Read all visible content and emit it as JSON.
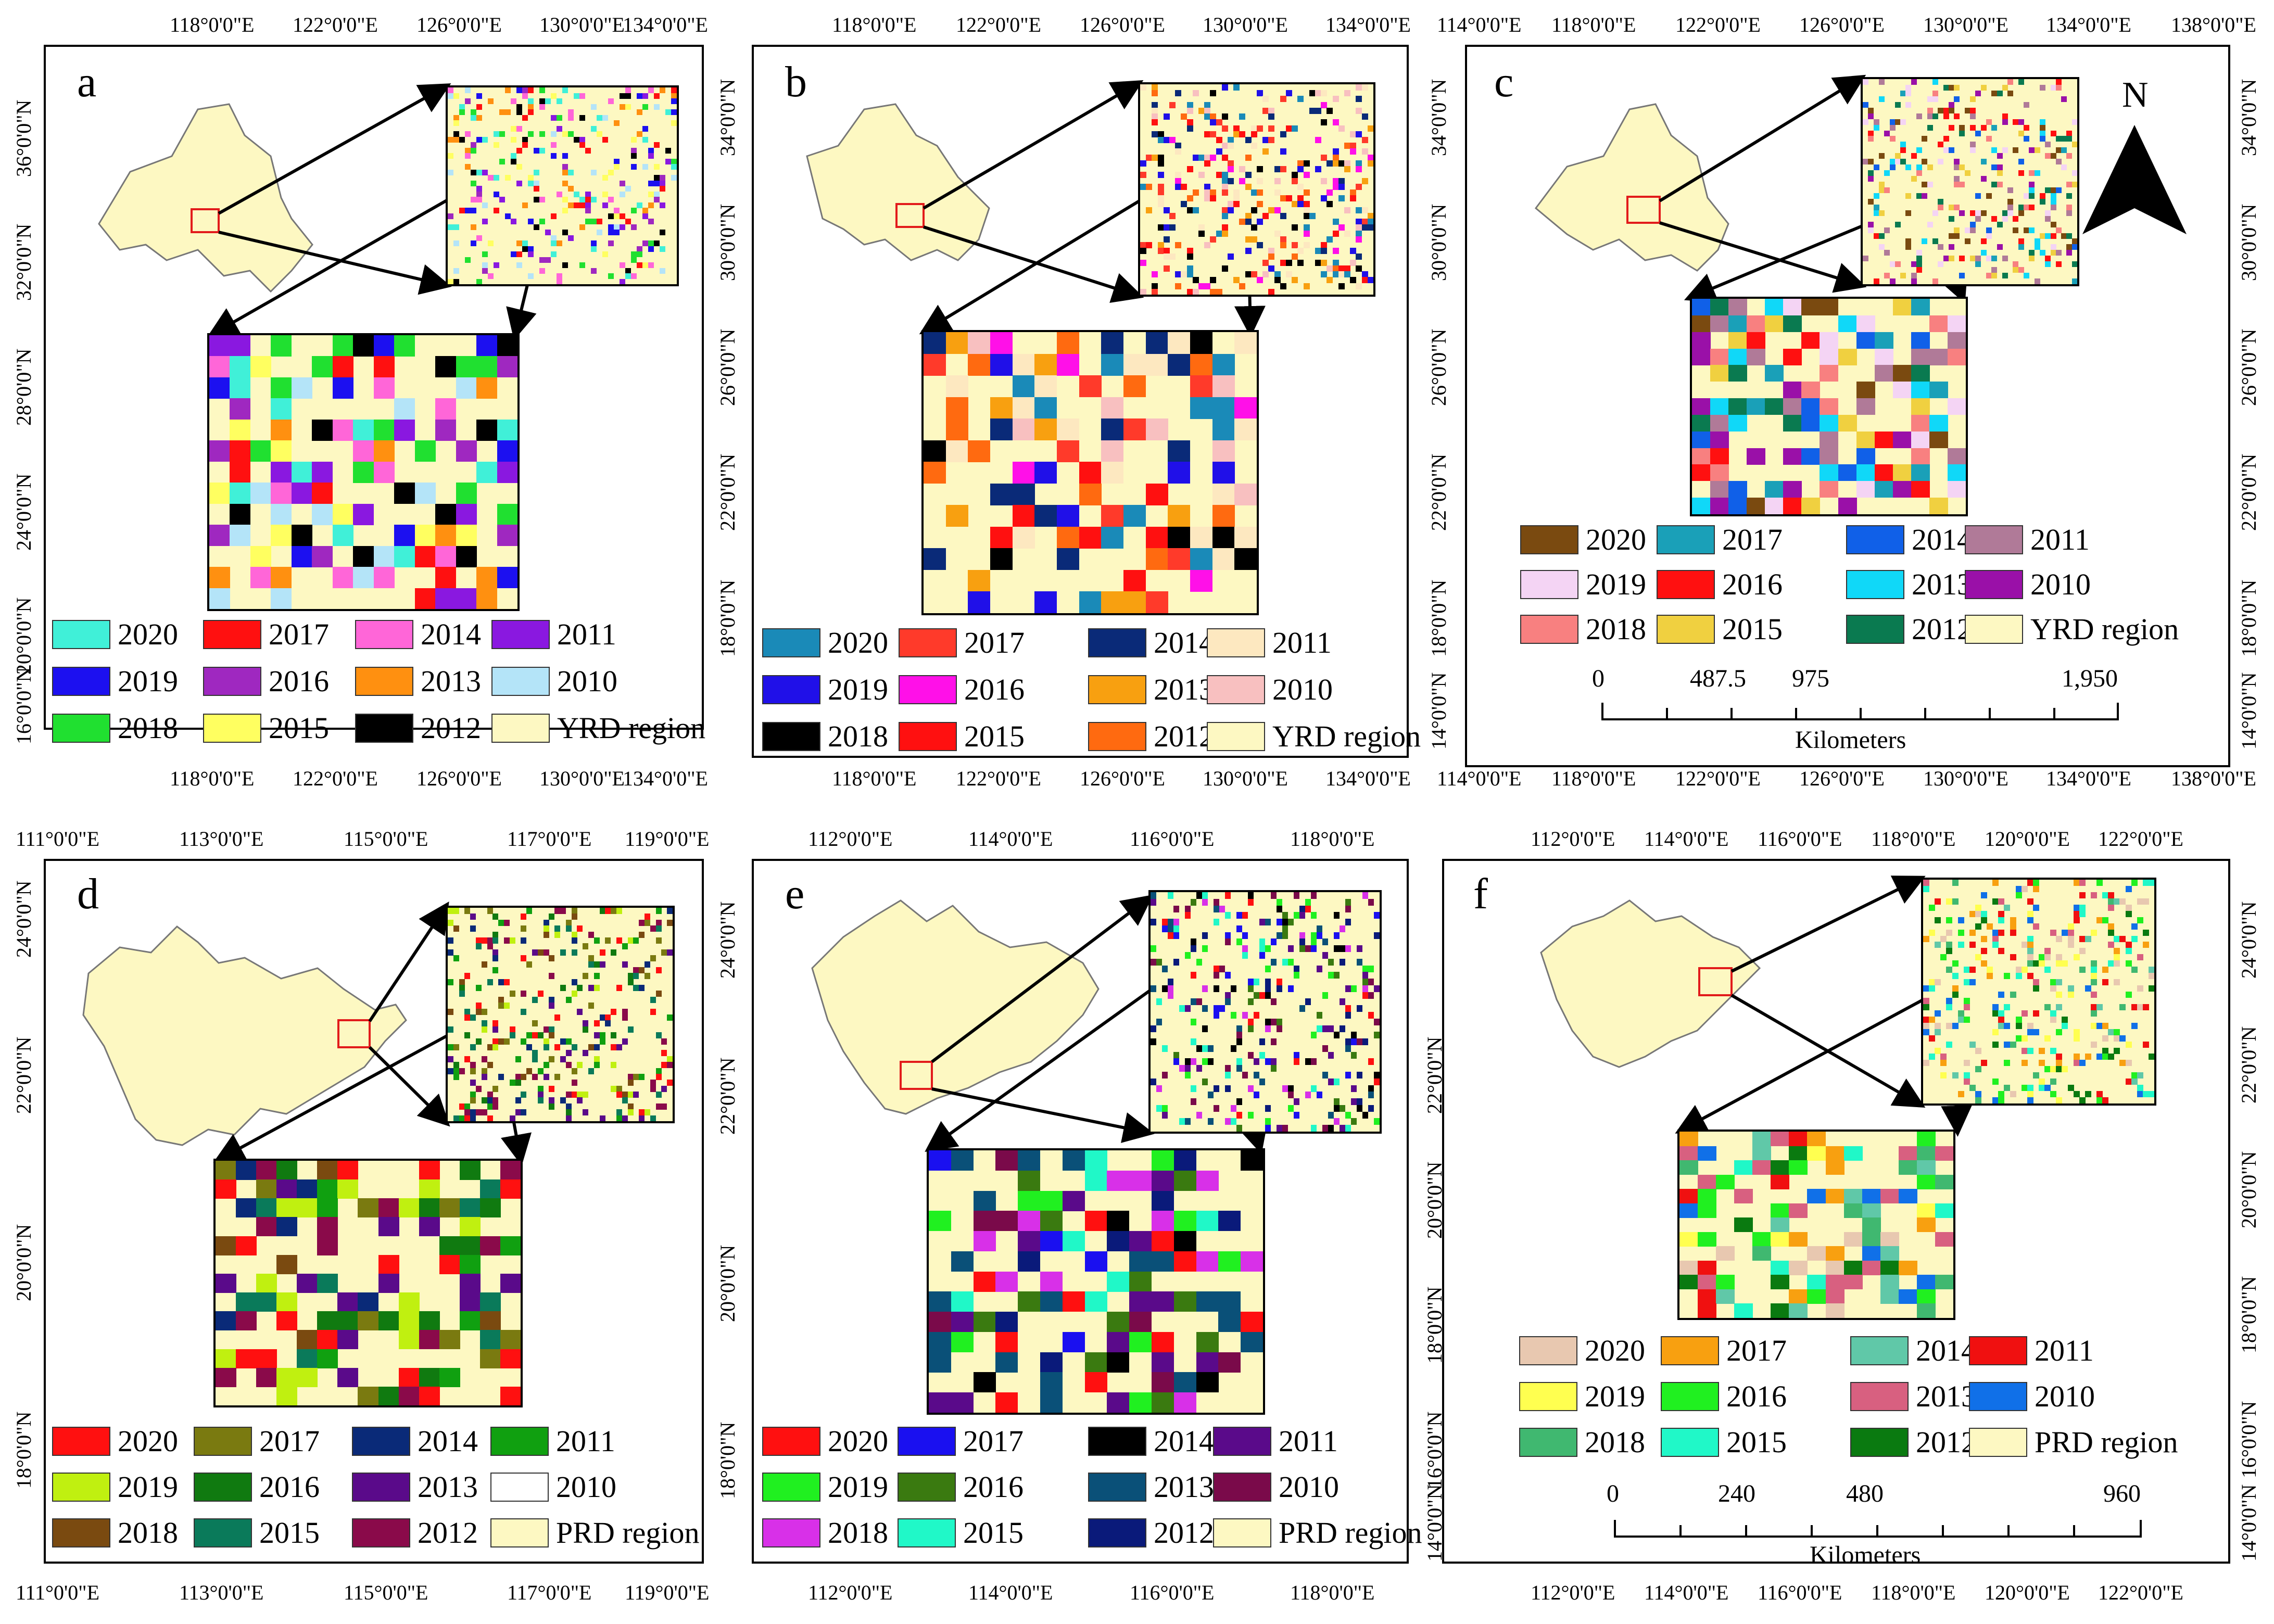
{
  "figure": "Six-panel land change maps of YRD and PRD regions",
  "colors": {
    "region": "#fdf8c2",
    "redbox": "#e21b1b"
  },
  "panels": [
    {
      "id": "a",
      "label": "a",
      "xticks": [
        "118°0'0\"E",
        "122°0'0\"E",
        "126°0'0\"E",
        "130°0'0\"E",
        "134°0'0\"E"
      ],
      "yticks_left": [
        "36°0'0\"N",
        "32°0'0\"N",
        "28°0'0\"N",
        "24°0'0\"N",
        "20°0'0\"N",
        "16°0'0\"N"
      ],
      "legend": [
        {
          "label": "2020",
          "color": "#40f0d8"
        },
        {
          "label": "2017",
          "color": "#ff1010"
        },
        {
          "label": "2014",
          "color": "#ff66d8"
        },
        {
          "label": "2011",
          "color": "#8a18e0"
        },
        {
          "label": "2019",
          "color": "#1c10f0"
        },
        {
          "label": "2016",
          "color": "#9f28c0"
        },
        {
          "label": "2013",
          "color": "#ff9010"
        },
        {
          "label": "2010",
          "color": "#b4e4f8"
        },
        {
          "label": "2018",
          "color": "#20e030"
        },
        {
          "label": "2015",
          "color": "#ffff60"
        },
        {
          "label": "2012",
          "color": "#000000"
        },
        {
          "label": "YRD region",
          "color": "#fdf8c2"
        }
      ]
    },
    {
      "id": "b",
      "label": "b",
      "xticks": [
        "118°0'0\"E",
        "122°0'0\"E",
        "126°0'0\"E",
        "130°0'0\"E",
        "134°0'0\"E"
      ],
      "yticks_left": [
        "34°0'0\"N",
        "30°0'0\"N",
        "26°0'0\"N",
        "22°0'0\"N",
        "18°0'0\"N"
      ],
      "legend": [
        {
          "label": "2020",
          "color": "#1a8ab8"
        },
        {
          "label": "2017",
          "color": "#ff3a2a"
        },
        {
          "label": "2014",
          "color": "#0a2a78"
        },
        {
          "label": "2011",
          "color": "#fde8c0"
        },
        {
          "label": "2019",
          "color": "#2010e8"
        },
        {
          "label": "2016",
          "color": "#ff10e8"
        },
        {
          "label": "2013",
          "color": "#f8a010"
        },
        {
          "label": "2010",
          "color": "#f8c0c0"
        },
        {
          "label": "2018",
          "color": "#000000"
        },
        {
          "label": "2015",
          "color": "#ff1010"
        },
        {
          "label": "2012",
          "color": "#ff6a10"
        },
        {
          "label": "YRD region",
          "color": "#fdf8c2"
        }
      ]
    },
    {
      "id": "c",
      "label": "c",
      "xticks": [
        "114°0'0\"E",
        "118°0'0\"E",
        "122°0'0\"E",
        "126°0'0\"E",
        "130°0'0\"E",
        "134°0'0\"E",
        "138°0'0\"E"
      ],
      "yticks_left": [
        "34°0'0\"N",
        "30°0'0\"N",
        "26°0'0\"N",
        "22°0'0\"N",
        "18°0'0\"N",
        "14°0'0\"N"
      ],
      "yticks_right": [
        "34°0'0\"N",
        "30°0'0\"N",
        "26°0'0\"N",
        "22°0'0\"N",
        "18°0'0\"N",
        "14°0'0\"N"
      ],
      "legend": [
        {
          "label": "2020",
          "color": "#7a4a10"
        },
        {
          "label": "2017",
          "color": "#1aa0b8"
        },
        {
          "label": "2014",
          "color": "#1060e8"
        },
        {
          "label": "2011",
          "color": "#b07a98"
        },
        {
          "label": "2019",
          "color": "#f4d4f4"
        },
        {
          "label": "2016",
          "color": "#ff1010"
        },
        {
          "label": "2013",
          "color": "#10d8f8"
        },
        {
          "label": "2010",
          "color": "#9a10a8"
        },
        {
          "label": "2018",
          "color": "#f88080"
        },
        {
          "label": "2015",
          "color": "#f0d040"
        },
        {
          "label": "2012",
          "color": "#0a7a50"
        },
        {
          "label": "YRD region",
          "color": "#fdf8c2"
        }
      ],
      "scale": {
        "labels": [
          "0",
          "487.5",
          "975",
          "1,950"
        ],
        "unit": "Kilometers"
      },
      "north": "N"
    },
    {
      "id": "d",
      "label": "d",
      "xticks_top": [
        "111°0'0\"E",
        "113°0'0\"E",
        "115°0'0\"E",
        "117°0'0\"E",
        "119°0'0\"E"
      ],
      "xticks_bottom": [
        "111°0'0\"E",
        "113°0'0\"E",
        "115°0'0\"E",
        "117°0'0\"E",
        "119°0'0\"E"
      ],
      "yticks_left": [
        "24°0'0\"N",
        "22°0'0\"N",
        "20°0'0\"N",
        "18°0'0\"N"
      ],
      "legend": [
        {
          "label": "2020",
          "color": "#ff1010"
        },
        {
          "label": "2017",
          "color": "#7a7a10"
        },
        {
          "label": "2014",
          "color": "#0a2a78"
        },
        {
          "label": "2011",
          "color": "#10a010"
        },
        {
          "label": "2019",
          "color": "#c0f010"
        },
        {
          "label": "2016",
          "color": "#107a10"
        },
        {
          "label": "2013",
          "color": "#5a0a8a"
        },
        {
          "label": "2010",
          "color": "#ffffff"
        },
        {
          "label": "2018",
          "color": "#7a4a10"
        },
        {
          "label": "2015",
          "color": "#0a7a5a"
        },
        {
          "label": "2012",
          "color": "#8a0a4a"
        },
        {
          "label": "PRD region",
          "color": "#fdf8c2"
        }
      ]
    },
    {
      "id": "e",
      "label": "e",
      "xticks_top": [
        "112°0'0\"E",
        "114°0'0\"E",
        "116°0'0\"E",
        "118°0'0\"E"
      ],
      "xticks_bottom": [
        "112°0'0\"E",
        "114°0'0\"E",
        "116°0'0\"E",
        "118°0'0\"E"
      ],
      "yticks_left": [
        "24°0'0\"N",
        "22°0'0\"N",
        "20°0'0\"N",
        "18°0'0\"N"
      ],
      "legend": [
        {
          "label": "2020",
          "color": "#ff1010"
        },
        {
          "label": "2017",
          "color": "#1a10f0"
        },
        {
          "label": "2014",
          "color": "#000000"
        },
        {
          "label": "2011",
          "color": "#5a0a8a"
        },
        {
          "label": "2019",
          "color": "#20f020"
        },
        {
          "label": "2016",
          "color": "#3a7a10"
        },
        {
          "label": "2013",
          "color": "#0a5078"
        },
        {
          "label": "2010",
          "color": "#7a0a4a"
        },
        {
          "label": "2018",
          "color": "#d830e8"
        },
        {
          "label": "2015",
          "color": "#20f8c8"
        },
        {
          "label": "2012",
          "color": "#0a1a7a"
        },
        {
          "label": "PRD region",
          "color": "#fdf8c2"
        }
      ]
    },
    {
      "id": "f",
      "label": "f",
      "xticks_top": [
        "112°0'0\"E",
        "114°0'0\"E",
        "116°0'0\"E",
        "118°0'0\"E",
        "120°0'0\"E",
        "122°0'0\"E"
      ],
      "xticks_bottom": [
        "112°0'0\"E",
        "114°0'0\"E",
        "116°0'0\"E",
        "118°0'0\"E",
        "120°0'0\"E",
        "122°0'0\"E"
      ],
      "yticks_left": [
        "22°0'0\"N",
        "20°0'0\"N",
        "18°0'0\"N",
        "16°0'0\"N",
        "14°0'0\"N"
      ],
      "yticks_right": [
        "24°0'0\"N",
        "22°0'0\"N",
        "20°0'0\"N",
        "18°0'0\"N",
        "16°0'0\"N",
        "14°0'0\"N"
      ],
      "legend": [
        {
          "label": "2020",
          "color": "#e8c8b0"
        },
        {
          "label": "2017",
          "color": "#f8a010"
        },
        {
          "label": "2014",
          "color": "#60c8a8"
        },
        {
          "label": "2011",
          "color": "#f01010"
        },
        {
          "label": "2019",
          "color": "#ffff50"
        },
        {
          "label": "2016",
          "color": "#20f020"
        },
        {
          "label": "2013",
          "color": "#d86080"
        },
        {
          "label": "2010",
          "color": "#1070e8"
        },
        {
          "label": "2018",
          "color": "#40b870"
        },
        {
          "label": "2015",
          "color": "#20f8c8"
        },
        {
          "label": "2012",
          "color": "#0a7a10"
        },
        {
          "label": "PRD region",
          "color": "#fdf8c2"
        }
      ],
      "scale": {
        "labels": [
          "0",
          "240",
          "480",
          "960"
        ],
        "unit": "Kilometers"
      }
    }
  ]
}
